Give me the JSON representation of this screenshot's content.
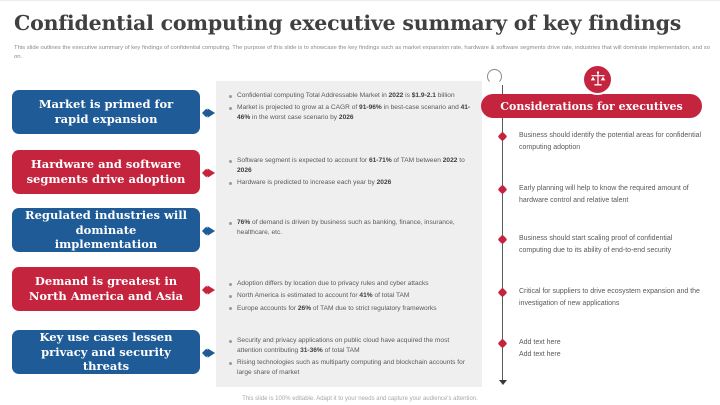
{
  "title": "Confidential computing executive summary of key findings",
  "subtitle": "This slide outlines the executive summary of key findings of confidential computing. The purpose of this slide is to showcase the key findings such as market expansion rate, hardware & software segments drive rate, industries that will dominate implementation, and so on.",
  "colors": {
    "blue": "#1e5b97",
    "red": "#c5243f",
    "panel_gray": "#efefef"
  },
  "findings": [
    {
      "label": "Market is primed for rapid expansion",
      "color": "blue",
      "bullets": [
        [
          [
            "Confidential computing Total Addressable Market in ",
            0
          ],
          [
            "2022",
            1
          ],
          [
            " is ",
            0
          ],
          [
            "$1.9-2.1",
            1
          ],
          [
            " billion",
            0
          ]
        ],
        [
          [
            "Market is projected to grow at a CAGR of ",
            0
          ],
          [
            "91-96%",
            1
          ],
          [
            " in best-case scenario and ",
            0
          ],
          [
            "41-46%",
            1
          ],
          [
            " in the worst case scenario by ",
            0
          ],
          [
            "2026",
            1
          ]
        ]
      ]
    },
    {
      "label": "Hardware and software segments drive adoption",
      "color": "red",
      "bullets": [
        [
          [
            "Software segment is expected to account for ",
            0
          ],
          [
            "61-71%",
            1
          ],
          [
            " of TAM between ",
            0
          ],
          [
            "2022",
            1
          ],
          [
            " to ",
            0
          ],
          [
            "2026",
            1
          ]
        ],
        [
          [
            "Hardware is predicted to increase each year by ",
            0
          ],
          [
            "2026",
            1
          ]
        ]
      ]
    },
    {
      "label": "Regulated industries will dominate implementation",
      "color": "blue",
      "bullets": [
        [
          [
            "76%",
            1
          ],
          [
            " of demand is driven by business such as banking, finance, insurance, healthcare, etc.",
            0
          ]
        ]
      ]
    },
    {
      "label": "Demand is greatest in North America and Asia",
      "color": "red",
      "bullets": [
        [
          [
            "Adoption differs by location due to privacy rules and cyber attacks",
            0
          ]
        ],
        [
          [
            "North America is estimated to account for ",
            0
          ],
          [
            "41%",
            1
          ],
          [
            " of total TAM",
            0
          ]
        ],
        [
          [
            "Europe accounts for ",
            0
          ],
          [
            "26%",
            1
          ],
          [
            " of TAM due to strict regulatory frameworks",
            0
          ]
        ]
      ]
    },
    {
      "label": "Key use cases lessen privacy and security threats",
      "color": "blue",
      "bullets": [
        [
          [
            "Security and privacy applications on public cloud have acquired the most attention contributing ",
            0
          ],
          [
            "31-36%",
            1
          ],
          [
            " of total TAM",
            0
          ]
        ],
        [
          [
            "Rising technologies such as multiparty computing and blockchain accounts for large share of market",
            0
          ]
        ]
      ]
    }
  ],
  "executives": {
    "header": "Considerations for executives",
    "icon": "scales-of-justice-icon",
    "items": [
      "Business should identify the potential areas for confidential computing adoption",
      "Early planning will help to know the required amount of hardware control and relative talent",
      "Business should start scaling proof of confidential computing due to its ability of end-to-end security",
      "Critical for suppliers to drive ecosystem expansion and the investigation of new applications",
      "Add text here\nAdd text here"
    ]
  },
  "footer": "This slide is 100% editable. Adapt it to your needs and capture your audience's attention."
}
